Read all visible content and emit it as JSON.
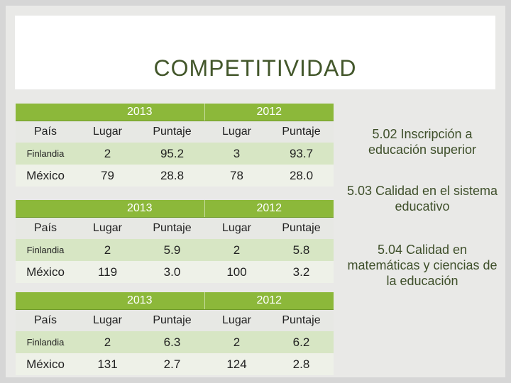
{
  "title": "COMPETITIVIDAD",
  "colors": {
    "accent_green": "#8cb83a",
    "row_light_green": "#d7e6c4",
    "title_text": "#43572b"
  },
  "tables": [
    {
      "years": [
        "2013",
        "2012"
      ],
      "headers": [
        "País",
        "Lugar",
        "Puntaje",
        "Lugar",
        "Puntaje"
      ],
      "rows": [
        [
          "Finlandia",
          "2",
          "95.2",
          "3",
          "93.7"
        ],
        [
          "México",
          "79",
          "28.8",
          "78",
          "28.0"
        ]
      ]
    },
    {
      "years": [
        "2013",
        "2012"
      ],
      "headers": [
        "País",
        "Lugar",
        "Puntaje",
        "Lugar",
        "Puntaje"
      ],
      "rows": [
        [
          "Finlandia",
          "2",
          "5.9",
          "2",
          "5.8"
        ],
        [
          "México",
          "119",
          "3.0",
          "100",
          "3.2"
        ]
      ]
    },
    {
      "years": [
        "2013",
        "2012"
      ],
      "headers": [
        "País",
        "Lugar",
        "Puntaje",
        "Lugar",
        "Puntaje"
      ],
      "rows": [
        [
          "Finlandia",
          "2",
          "6.3",
          "2",
          "6.2"
        ],
        [
          "México",
          "131",
          "2.7",
          "124",
          "2.8"
        ]
      ]
    }
  ],
  "side_labels": [
    "5.02 Inscripción a educación superior",
    "5.03 Calidad en el sistema educativo",
    "5.04 Calidad en matemáticas y ciencias de la educación"
  ]
}
